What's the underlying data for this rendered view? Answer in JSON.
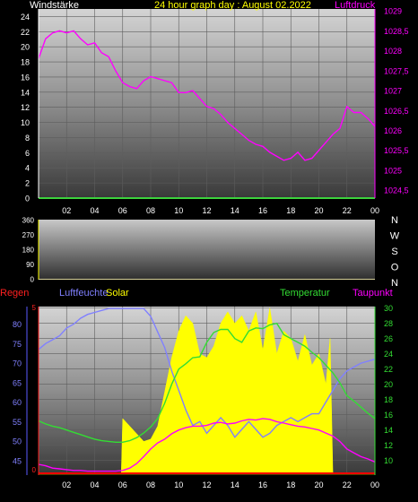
{
  "chart_data": [
    {
      "type": "line",
      "title": "24 hour graph day : August 02.2022",
      "left_label": "Windstärke",
      "right_label": "Luftdruck",
      "x_ticks": [
        "02",
        "04",
        "06",
        "08",
        "10",
        "12",
        "14",
        "16",
        "18",
        "20",
        "22",
        "00"
      ],
      "y_left_ticks": [
        "0",
        "2",
        "4",
        "6",
        "8",
        "10",
        "12",
        "14",
        "16",
        "18",
        "20",
        "22",
        "24"
      ],
      "y_left_range": [
        0,
        25
      ],
      "y_right_ticks": [
        "1024,5",
        "1025",
        "1025,5",
        "1026",
        "1026,5",
        "1027",
        "1027,5",
        "1028",
        "1028,5",
        "1029"
      ],
      "y_right_range": [
        1024.3,
        1029.05
      ],
      "grid": true,
      "series": [
        {
          "name": "Luftdruck",
          "axis": "right",
          "color": "#ff00ff",
          "x": [
            0,
            0.5,
            1,
            1.5,
            2,
            2.5,
            3,
            3.5,
            4,
            4.5,
            5,
            5.5,
            6,
            6.5,
            7,
            7.5,
            8,
            8.5,
            9,
            9.5,
            10,
            10.5,
            11,
            11.5,
            12,
            12.5,
            13,
            13.5,
            14,
            14.5,
            15,
            15.5,
            16,
            16.5,
            17,
            17.5,
            18,
            18.5,
            19,
            19.5,
            20,
            20.5,
            21,
            21.5,
            22,
            22.5,
            23,
            23.5,
            24
          ],
          "y": [
            1027.8,
            1028.3,
            1028.45,
            1028.5,
            1028.45,
            1028.5,
            1028.3,
            1028.15,
            1028.2,
            1027.95,
            1027.85,
            1027.5,
            1027.2,
            1027.1,
            1027.05,
            1027.25,
            1027.35,
            1027.3,
            1027.25,
            1027.2,
            1026.95,
            1026.95,
            1027.0,
            1026.8,
            1026.6,
            1026.55,
            1026.4,
            1026.2,
            1026.05,
            1025.9,
            1025.75,
            1025.65,
            1025.6,
            1025.45,
            1025.35,
            1025.25,
            1025.3,
            1025.45,
            1025.25,
            1025.3,
            1025.5,
            1025.7,
            1025.9,
            1026.05,
            1026.6,
            1026.45,
            1026.45,
            1026.3,
            1026.1
          ]
        },
        {
          "name": "Windstärke",
          "axis": "left",
          "color": "#3cd23c",
          "x": [
            0,
            24
          ],
          "y": [
            0,
            0
          ]
        }
      ]
    },
    {
      "type": "line",
      "y_left_ticks": [
        "0",
        "90",
        "180",
        "270",
        "360"
      ],
      "y_left_range": [
        0,
        360
      ],
      "right_letters": [
        "N",
        "W",
        "S",
        "O",
        "N"
      ],
      "series": []
    },
    {
      "type": "line",
      "labels": {
        "regen": "Regen",
        "luftfeuchte": "Luftfeuchte",
        "solar": "Solar",
        "temperatur": "Temperatur",
        "taupunkt": "Taupunkt"
      },
      "x_ticks": [
        "02",
        "04",
        "06",
        "08",
        "10",
        "12",
        "14",
        "16",
        "18",
        "20",
        "22",
        "00"
      ],
      "y_humidity_ticks": [
        "45",
        "50",
        "55",
        "60",
        "65",
        "70",
        "75",
        "80"
      ],
      "y_humidity_range": [
        41.5,
        84.5
      ],
      "y_temp_ticks": [
        "10",
        "12",
        "14",
        "16",
        "18",
        "20",
        "22",
        "24",
        "26",
        "28",
        "30"
      ],
      "y_temp_range": [
        8.2,
        30.2
      ],
      "regen_ticks": [
        "0",
        "5"
      ],
      "series": [
        {
          "name": "Luftfeuchte",
          "color": "#8080ff",
          "x": [
            0,
            0.5,
            1,
            1.5,
            2,
            2.5,
            3,
            3.5,
            4,
            4.5,
            5,
            5.5,
            6,
            6.5,
            7,
            7.5,
            8,
            8.5,
            9,
            9.5,
            10,
            10.5,
            11,
            11.5,
            12,
            12.5,
            13,
            13.5,
            14,
            14.5,
            15,
            15.5,
            16,
            16.5,
            17,
            17.5,
            18,
            18.5,
            19,
            19.5,
            20,
            20.5,
            21,
            21.5,
            22,
            22.5,
            23,
            23.5,
            24
          ],
          "y": [
            73.5,
            75,
            76,
            77,
            79,
            80,
            81.5,
            82.5,
            83,
            83.5,
            84,
            84,
            84,
            84,
            84,
            84,
            82,
            78,
            74,
            68,
            63,
            58,
            54,
            55,
            52,
            54,
            56,
            54,
            51,
            53,
            55,
            53,
            51,
            52,
            54,
            55,
            56,
            55,
            56,
            57,
            57,
            60,
            63,
            66,
            68,
            69,
            70,
            70.5,
            71
          ]
        },
        {
          "name": "Temperatur",
          "color": "#33dd33",
          "x": [
            0,
            0.5,
            1,
            1.5,
            2,
            2.5,
            3,
            3.5,
            4,
            4.5,
            5,
            5.5,
            6,
            6.5,
            7,
            7.5,
            8,
            8.5,
            9,
            9.5,
            10,
            10.5,
            11,
            11.5,
            12,
            12.5,
            13,
            13.5,
            14,
            14.5,
            15,
            15.5,
            16,
            16.5,
            17,
            17.5,
            18,
            18.5,
            19,
            19.5,
            20,
            20.5,
            21,
            21.5,
            22,
            22.5,
            23,
            23.5,
            24
          ],
          "y": [
            15.2,
            14.8,
            14.5,
            14.3,
            14.0,
            13.7,
            13.4,
            13.1,
            12.8,
            12.6,
            12.5,
            12.4,
            12.4,
            12.6,
            13.0,
            13.6,
            14.4,
            15.5,
            17.5,
            20.0,
            22.0,
            22.7,
            23.5,
            23.6,
            25.5,
            26.8,
            27.2,
            27.2,
            26.0,
            25.5,
            27.0,
            27.4,
            27.3,
            27.8,
            28.0,
            26.5,
            26.0,
            25.5,
            25.0,
            24.2,
            23.5,
            22.5,
            21.5,
            20.2,
            18.5,
            17.8,
            17.0,
            16.2,
            15.5
          ]
        },
        {
          "name": "Taupunkt",
          "color": "#ff00ff",
          "x": [
            0,
            0.5,
            1,
            1.5,
            2,
            2.5,
            3,
            3.5,
            4,
            4.5,
            5,
            5.5,
            6,
            6.5,
            7,
            7.5,
            8,
            8.5,
            9,
            9.5,
            10,
            10.5,
            11,
            11.5,
            12,
            12.5,
            13,
            13.5,
            14,
            14.5,
            15,
            15.5,
            16,
            16.5,
            17,
            17.5,
            18,
            18.5,
            19,
            19.5,
            20,
            20.5,
            21,
            21.5,
            22,
            22.5,
            23,
            23.5,
            24
          ],
          "y": [
            9.5,
            9.3,
            9.0,
            8.9,
            8.8,
            8.7,
            8.7,
            8.6,
            8.6,
            8.6,
            8.6,
            8.6,
            8.7,
            9.0,
            9.6,
            10.5,
            11.5,
            12.3,
            12.8,
            13.5,
            14.0,
            14.3,
            14.5,
            14.5,
            14.6,
            14.9,
            15.0,
            14.8,
            14.9,
            15.2,
            15.4,
            15.3,
            15.5,
            15.4,
            15.1,
            14.9,
            14.7,
            14.5,
            14.4,
            14.2,
            14.0,
            13.6,
            13.2,
            12.5,
            11.5,
            11.0,
            10.5,
            10.2,
            9.8
          ]
        },
        {
          "name": "Solar",
          "color": "#ffff00",
          "x": [
            0,
            5.9,
            6.0,
            6.5,
            7,
            7.5,
            8,
            8.5,
            9,
            9.5,
            10,
            10.5,
            11,
            11.5,
            12,
            12.5,
            13,
            13.5,
            14,
            14.5,
            15,
            15.5,
            16,
            16.5,
            17,
            17.5,
            18,
            18.5,
            19,
            19.5,
            20,
            20.5,
            20.8,
            21.0,
            24
          ],
          "y": [
            8.3,
            8.3,
            15.5,
            14.5,
            13.5,
            12.5,
            12.8,
            14.5,
            19,
            23.5,
            27,
            29,
            28,
            24,
            23.5,
            25,
            28,
            29.5,
            28,
            29,
            27,
            29.5,
            24.5,
            30,
            24,
            27,
            26,
            23,
            26.5,
            22.5,
            24,
            20,
            26,
            8.3,
            8.3
          ]
        },
        {
          "name": "Regen",
          "color": "#ff0000",
          "x": [
            0,
            24
          ],
          "y": [
            0,
            0
          ]
        }
      ]
    }
  ]
}
